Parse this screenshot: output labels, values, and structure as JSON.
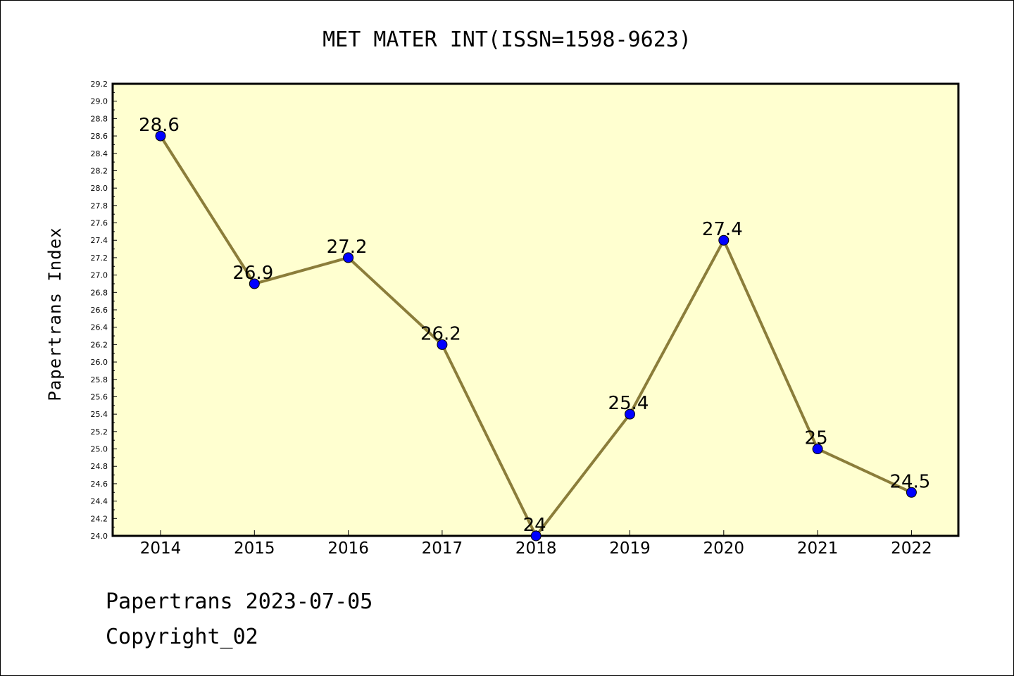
{
  "chart_data": {
    "type": "line",
    "title": "MET MATER INT(ISSN=1598-9623)",
    "ylabel": "Papertrans Index",
    "xlabel": "",
    "categories": [
      "2014",
      "2015",
      "2016",
      "2017",
      "2018",
      "2019",
      "2020",
      "2021",
      "2022"
    ],
    "values": [
      28.6,
      26.9,
      27.2,
      26.2,
      24,
      25.4,
      27.4,
      25,
      24.5
    ],
    "data_labels": [
      "28.6",
      "26.9",
      "27.2",
      "26.2",
      "24",
      "25.4",
      "27.4",
      "25",
      "24.5"
    ],
    "ylim": [
      24.0,
      29.2
    ],
    "yticks": [
      "24.0",
      "24.2",
      "24.4",
      "24.6",
      "24.8",
      "25.0",
      "25.2",
      "25.4",
      "25.6",
      "25.8",
      "26.0",
      "26.2",
      "26.4",
      "26.6",
      "26.8",
      "27.0",
      "27.2",
      "27.4",
      "27.6",
      "27.8",
      "28.0",
      "28.2",
      "28.4",
      "28.6",
      "28.8",
      "29.0",
      "29.2"
    ],
    "grid": false,
    "colors": {
      "plot_background": "#ffffd0",
      "line": "#8b7d3a",
      "marker": "#0000ff"
    }
  },
  "footer": {
    "line1": "Papertrans 2023-07-05",
    "line2": "Copyright_02"
  }
}
